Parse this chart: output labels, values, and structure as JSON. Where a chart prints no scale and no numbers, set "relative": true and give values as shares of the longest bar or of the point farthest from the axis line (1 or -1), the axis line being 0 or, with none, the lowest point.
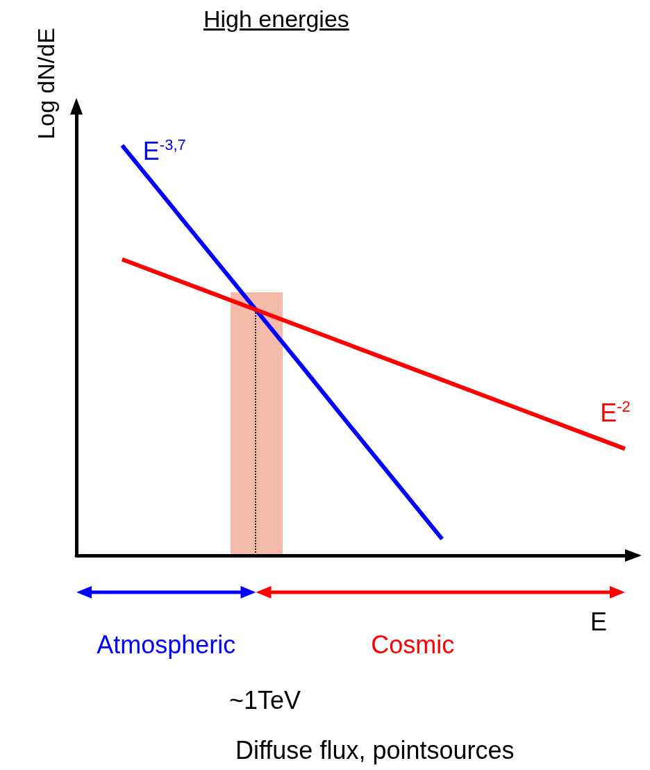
{
  "chart_data": {
    "type": "line",
    "title": "High energies",
    "xlabel": "E",
    "ylabel": "Log dN/dE",
    "relative": true,
    "categories": [
      null,
      null,
      null,
      null,
      null,
      null,
      null,
      null,
      null,
      null,
      null,
      null,
      null
    ],
    "series": [
      {
        "name": "E$^{-3,7}$",
        "color": "#0000ff",
        "values": [
          null,
          1,
          0.863,
          0.726,
          0.589,
          0.452,
          0.314,
          0.177,
          0.04,
          null,
          null,
          null,
          null
        ]
      },
      {
        "name": "E$^{-2}$",
        "color": "#ff0000",
        "values": [
          null,
          0.722,
          0.68,
          0.638,
          0.596,
          0.554,
          0.512,
          0.47,
          0.428,
          0.386,
          0.344,
          0.302,
          0.26
        ]
      }
    ],
    "annotations": [
      "Atmospheric",
      "Cosmic",
      "~1TeV",
      "Diffuse flux, pointsources"
    ],
    "marker": "none",
    "line_style": "solid",
    "grid": false,
    "legend": false
  }
}
